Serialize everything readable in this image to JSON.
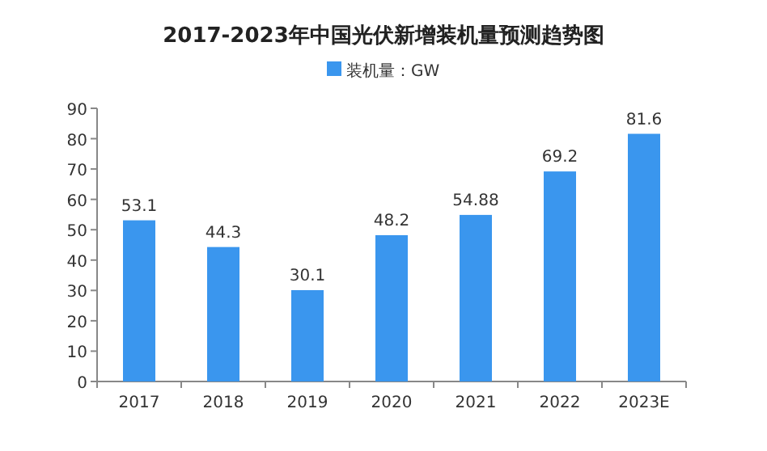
{
  "chart_data": {
    "type": "bar",
    "title": "2017-2023年中国光伏新增装机量预测趋势图",
    "categories": [
      "2017",
      "2018",
      "2019",
      "2020",
      "2021",
      "2022",
      "2023E"
    ],
    "series": [
      {
        "name": "装机量：GW",
        "color": "#3a96ee",
        "values": [
          53.1,
          44.3,
          30.1,
          48.2,
          54.88,
          69.2,
          81.6
        ]
      }
    ],
    "ylim": [
      0,
      90
    ],
    "yticks": [
      0,
      10,
      20,
      30,
      40,
      50,
      60,
      70,
      80,
      90
    ],
    "data_labels": true,
    "legend": "top",
    "grid": false
  }
}
